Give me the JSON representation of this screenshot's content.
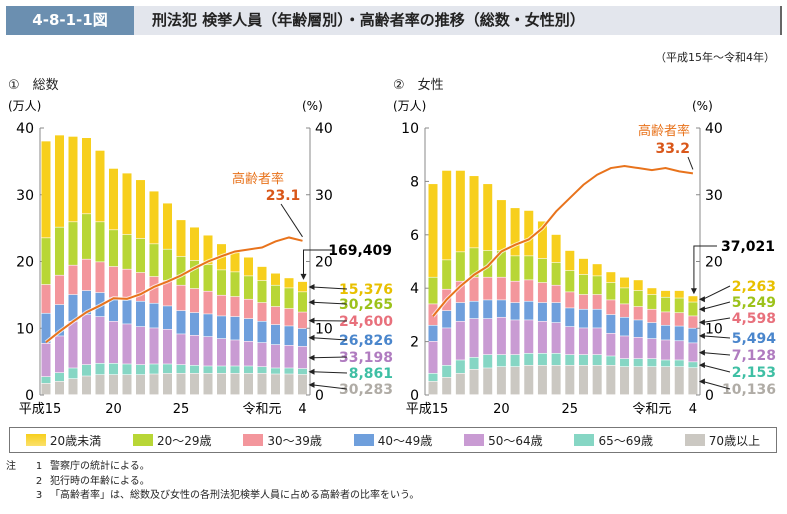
{
  "header": {
    "figure_no": "4-8-1-1図",
    "title": "刑法犯 検挙人員（年齢層別）・高齢者率の推移（総数・女性別）",
    "period": "（平成15年～令和4年）"
  },
  "legend": [
    "20歳未満",
    "20～29歳",
    "30～39歳",
    "40～49歳",
    "50～64歳",
    "65～69歳",
    "70歳以上"
  ],
  "colors": [
    "#f7cf1d",
    "#b8d636",
    "#f3969c",
    "#6f9fdc",
    "#c99bd3",
    "#86d6c4",
    "#cbc8c2"
  ],
  "label_colors": [
    "#e8c000",
    "#9cc21a",
    "#e8707c",
    "#4a86cc",
    "#b07cc0",
    "#3fbfa4",
    "#b0aca6"
  ],
  "line_color": "#e8731c",
  "notes": {
    "head": "注",
    "items": [
      {
        "n": "1",
        "text": "警察庁の統計による。"
      },
      {
        "n": "2",
        "text": "犯行時の年齢による。"
      },
      {
        "n": "3",
        "text": "「高齢者率」は、総数及び女性の各刑法犯検挙人員に占める高齢者の比率をいう。"
      }
    ]
  },
  "chart_data": [
    {
      "type": "bar",
      "subtitle": "①　総数",
      "ylabel": "(万人)",
      "y2label": "(%)",
      "ylim": [
        0,
        40
      ],
      "y2lim": [
        0,
        40
      ],
      "yticks": [
        "0",
        "10",
        "20",
        "30",
        "40"
      ],
      "y2ticks": [
        "0",
        "10",
        "20",
        "30",
        "40"
      ],
      "xticks": [
        {
          "i": 0,
          "label": "平成15"
        },
        {
          "i": 5,
          "label": "20"
        },
        {
          "i": 10,
          "label": "25"
        },
        {
          "i": 16,
          "label": "令和元"
        },
        {
          "i": 19,
          "label": "4"
        }
      ],
      "series_order": [
        "70歳以上",
        "65～69歳",
        "50～64歳",
        "40～49歳",
        "30～39歳",
        "20～29歳",
        "20歳未満"
      ],
      "series": [
        {
          "name": "70歳以上",
          "values": [
            1.7,
            2.0,
            2.4,
            2.8,
            3.0,
            3.0,
            3.0,
            3.0,
            3.1,
            3.2,
            3.2,
            3.2,
            3.2,
            3.2,
            3.2,
            3.2,
            3.2,
            3.1,
            3.1,
            3.03
          ]
        },
        {
          "name": "65～69歳",
          "values": [
            1.0,
            1.3,
            1.6,
            1.7,
            1.7,
            1.7,
            1.6,
            1.5,
            1.5,
            1.4,
            1.3,
            1.2,
            1.1,
            1.1,
            1.1,
            1.1,
            1.0,
            0.9,
            0.9,
            0.89
          ]
        },
        {
          "name": "50～64歳",
          "values": [
            5.0,
            5.5,
            7.0,
            7.5,
            7.0,
            6.3,
            6.0,
            5.7,
            5.4,
            5.2,
            4.6,
            4.5,
            4.4,
            4.1,
            3.9,
            3.7,
            3.6,
            3.5,
            3.4,
            3.32
          ]
        },
        {
          "name": "40～49歳",
          "values": [
            4.5,
            4.7,
            4.0,
            3.6,
            3.6,
            3.5,
            3.6,
            3.8,
            3.7,
            3.5,
            3.5,
            3.4,
            3.4,
            3.4,
            3.5,
            3.4,
            3.2,
            3.0,
            2.9,
            2.68
          ]
        },
        {
          "name": "30～39歳",
          "values": [
            4.3,
            4.4,
            4.4,
            4.7,
            4.6,
            4.7,
            4.6,
            4.3,
            4.0,
            3.8,
            3.8,
            3.6,
            3.4,
            3.1,
            3.0,
            2.9,
            2.8,
            2.7,
            2.6,
            2.46
          ]
        },
        {
          "name": "20～29歳",
          "values": [
            7.0,
            7.2,
            6.5,
            6.8,
            6.0,
            5.5,
            5.2,
            5.1,
            4.9,
            4.7,
            4.3,
            4.2,
            4.0,
            3.8,
            3.7,
            3.5,
            3.3,
            3.2,
            3.1,
            3.03
          ]
        },
        {
          "name": "20歳未満",
          "values": [
            14.5,
            13.8,
            12.8,
            11.4,
            10.7,
            9.2,
            9.2,
            8.8,
            7.9,
            6.9,
            5.5,
            5.0,
            4.4,
            3.9,
            3.1,
            2.8,
            2.1,
            1.8,
            1.5,
            1.54
          ]
        }
      ],
      "rate": {
        "name": "高齢者率",
        "values": [
          7.9,
          9.5,
          11.0,
          12.4,
          13.4,
          14.5,
          14.4,
          15.1,
          16.2,
          17.0,
          17.9,
          19.0,
          20.0,
          20.8,
          21.5,
          21.8,
          22.1,
          23.0,
          23.6,
          23.1
        ],
        "last_label": "23.1"
      },
      "total_label": "169,409",
      "last_labels": [
        "15,376",
        "30,265",
        "24,600",
        "26,826",
        "33,198",
        "8,861",
        "30,283"
      ]
    },
    {
      "type": "bar",
      "subtitle": "②　女性",
      "ylabel": "(万人)",
      "y2label": "(%)",
      "ylim": [
        0,
        10
      ],
      "y2lim": [
        0,
        40
      ],
      "yticks": [
        "0",
        "2",
        "4",
        "6",
        "8",
        "10"
      ],
      "y2ticks": [
        "0",
        "10",
        "20",
        "30",
        "40"
      ],
      "xticks": [
        {
          "i": 0,
          "label": "平成15"
        },
        {
          "i": 5,
          "label": "20"
        },
        {
          "i": 10,
          "label": "25"
        },
        {
          "i": 16,
          "label": "令和元"
        },
        {
          "i": 19,
          "label": "4"
        }
      ],
      "series": [
        {
          "name": "70歳以上",
          "values": [
            0.5,
            0.65,
            0.8,
            0.95,
            1.0,
            1.05,
            1.05,
            1.1,
            1.1,
            1.1,
            1.1,
            1.1,
            1.1,
            1.1,
            1.05,
            1.05,
            1.05,
            1.05,
            1.05,
            1.01
          ]
        },
        {
          "name": "65～69歳",
          "values": [
            0.3,
            0.45,
            0.5,
            0.45,
            0.5,
            0.45,
            0.45,
            0.45,
            0.45,
            0.45,
            0.4,
            0.4,
            0.4,
            0.35,
            0.3,
            0.3,
            0.3,
            0.25,
            0.25,
            0.22
          ]
        },
        {
          "name": "50～64歳",
          "values": [
            1.2,
            1.4,
            1.45,
            1.45,
            1.35,
            1.4,
            1.3,
            1.25,
            1.2,
            1.15,
            1.05,
            1.0,
            1.0,
            0.85,
            0.85,
            0.8,
            0.75,
            0.75,
            0.72,
            0.71
          ]
        },
        {
          "name": "40～49歳",
          "values": [
            0.6,
            0.65,
            0.7,
            0.65,
            0.7,
            0.65,
            0.65,
            0.7,
            0.7,
            0.75,
            0.7,
            0.7,
            0.7,
            0.7,
            0.7,
            0.65,
            0.6,
            0.55,
            0.55,
            0.55
          ]
        },
        {
          "name": "30～39歳",
          "values": [
            0.8,
            0.8,
            0.8,
            0.9,
            0.85,
            0.85,
            0.8,
            0.8,
            0.75,
            0.65,
            0.6,
            0.55,
            0.55,
            0.55,
            0.5,
            0.5,
            0.5,
            0.5,
            0.5,
            0.46
          ]
        },
        {
          "name": "20～29歳",
          "values": [
            1.0,
            1.1,
            1.1,
            1.1,
            1.0,
            1.0,
            0.95,
            0.9,
            0.9,
            0.85,
            0.8,
            0.75,
            0.7,
            0.65,
            0.6,
            0.6,
            0.55,
            0.55,
            0.55,
            0.52
          ]
        },
        {
          "name": "20歳未満",
          "values": [
            3.5,
            3.35,
            3.05,
            2.7,
            2.5,
            1.9,
            1.8,
            1.7,
            1.4,
            1.05,
            0.75,
            0.6,
            0.45,
            0.4,
            0.4,
            0.4,
            0.25,
            0.25,
            0.28,
            0.23
          ]
        }
      ],
      "rate": {
        "name": "高齢者率",
        "values": [
          11.8,
          14.3,
          16.3,
          18.0,
          19.3,
          21.5,
          22.5,
          23.3,
          25.0,
          27.5,
          29.5,
          31.5,
          33.0,
          34.0,
          34.3,
          34.0,
          33.7,
          34.0,
          33.5,
          33.2
        ],
        "last_label": "33.2"
      },
      "total_label": "37,021",
      "last_labels": [
        "2,263",
        "5,249",
        "4,598",
        "5,494",
        "7,128",
        "2,153",
        "10,136"
      ]
    }
  ]
}
